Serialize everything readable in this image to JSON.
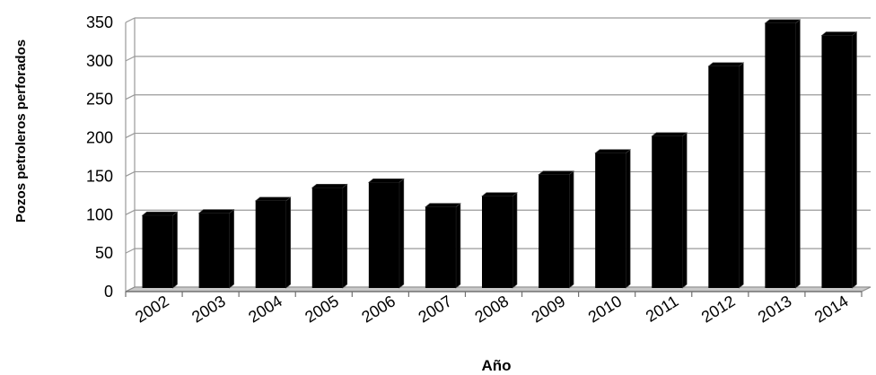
{
  "chart_data": {
    "type": "bar",
    "categories": [
      "2002",
      "2003",
      "2004",
      "2005",
      "2006",
      "2007",
      "2008",
      "2009",
      "2010",
      "2011",
      "2012",
      "2013",
      "2014"
    ],
    "values": [
      99,
      102,
      118,
      135,
      142,
      110,
      124,
      152,
      180,
      202,
      293,
      349,
      333
    ],
    "title": "",
    "xlabel": "Año",
    "ylabel": "Pozos petroleros perforados",
    "ylim": [
      0,
      350
    ],
    "yticks": [
      0,
      50,
      100,
      150,
      200,
      250,
      300,
      350
    ],
    "grid": true,
    "legend": "none",
    "bar_color": "#000000",
    "floor_color": "#c8c8c8"
  }
}
